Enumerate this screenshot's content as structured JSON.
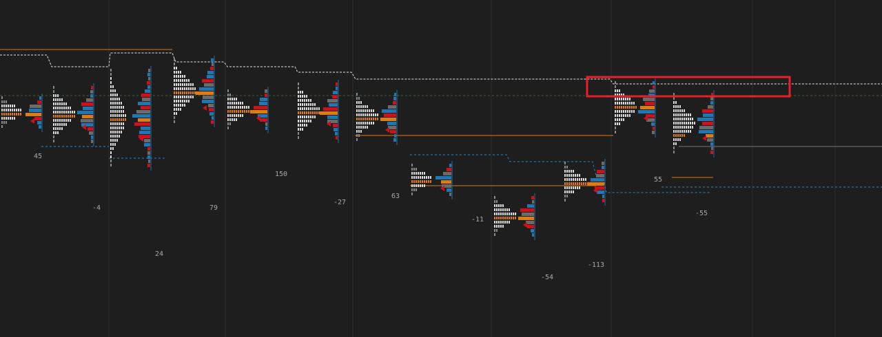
{
  "chart_data": {
    "type": "volume-profile",
    "title": "",
    "xlabel": "",
    "ylabel": "",
    "colors": {
      "background": "#1e1e1e",
      "grid": "#2c2c2c",
      "tpo": "#dcdcdc",
      "tpo_dim": "#8a8a8a",
      "ask": "#1f77b4",
      "bid": "#d0101a",
      "neutral": "#6b6b6b",
      "poc": "#e07b12",
      "value_line": "#2a86c0",
      "highlight_box": "#e8202a",
      "naked_poc": "#d0101a"
    },
    "profiles": [
      {
        "delta": "45",
        "rows": 8,
        "shape": "bell"
      },
      {
        "delta": "-4",
        "rows": 14,
        "shape": "bell"
      },
      {
        "delta": "24",
        "rows": 24,
        "shape": "bottom"
      },
      {
        "delta": "79",
        "rows": 16,
        "shape": "bell"
      },
      {
        "delta": "150",
        "rows": 10,
        "shape": "bell"
      },
      {
        "delta": "-27",
        "rows": 14,
        "shape": "bell"
      },
      {
        "delta": "63",
        "rows": 12,
        "shape": "bell"
      },
      {
        "delta": "-11",
        "rows": 8,
        "shape": "bell"
      },
      {
        "delta": "-54",
        "rows": 10,
        "shape": "bell"
      },
      {
        "delta": "-113",
        "rows": 10,
        "shape": "bell"
      },
      {
        "delta": "55",
        "rows": 13,
        "shape": "bell"
      },
      {
        "delta": "-55",
        "rows": 15,
        "shape": "top"
      }
    ],
    "annotation": {
      "type": "rectangle",
      "color": "#e8202a"
    }
  }
}
